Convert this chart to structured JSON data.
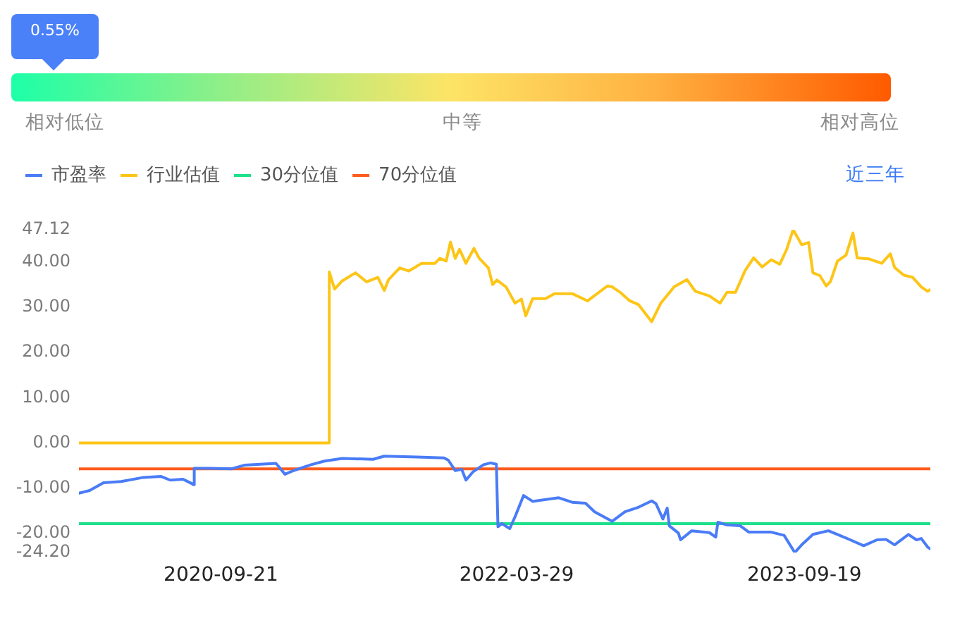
{
  "chart_data": {
    "type": "line",
    "annotations": [
      "0.55%",
      "相对低位",
      "中等",
      "相对高位",
      "近三年"
    ],
    "xlim": [
      "2019-12-30",
      "2024-05-12"
    ],
    "xticks": [
      "2020-09-21",
      "2022-03-29",
      "2023-09-19"
    ],
    "ylim": [
      -24.2,
      47.12
    ],
    "yticks": [
      {
        "value": 47.12,
        "label": "47.12"
      },
      {
        "value": 40,
        "label": "40.00"
      },
      {
        "value": 30,
        "label": "30.00"
      },
      {
        "value": 20,
        "label": "20.00"
      },
      {
        "value": 10,
        "label": "10.00"
      },
      {
        "value": 0,
        "label": "0.00"
      },
      {
        "value": -10,
        "label": "-10.00"
      },
      {
        "value": -20,
        "label": "-20.00"
      },
      {
        "value": -24.2,
        "label": "-24.20"
      }
    ],
    "legend": "top left",
    "series": [
      {
        "name": "市盈率",
        "color": "#4a7cf6",
        "x": [
          "2019-12-30",
          "2020-01-19",
          "2020-02-14",
          "2020-03-18",
          "2020-04-29",
          "2020-06-01",
          "2020-06-18",
          "2020-07-12",
          "2020-07-29",
          "2020-07-31",
          "2020-08-02",
          "2020-08-31",
          "2020-10-11",
          "2020-11-04",
          "2021-01-02",
          "2021-01-10",
          "2021-01-19",
          "2021-02-04",
          "2021-03-09",
          "2021-04-03",
          "2021-05-06",
          "2021-07-03",
          "2021-07-24",
          "2021-09-24",
          "2021-11-13",
          "2021-11-21",
          "2021-12-04",
          "2021-12-16",
          "2021-12-24",
          "2022-01-06",
          "2022-01-26",
          "2022-02-08",
          "2022-02-19",
          "2022-02-22",
          "2022-03-01",
          "2022-03-16",
          "2022-03-26",
          "2022-04-11",
          "2022-04-28",
          "2022-06-16",
          "2022-07-11",
          "2022-08-05",
          "2022-08-22",
          "2022-09-24",
          "2022-10-18",
          "2022-11-12",
          "2022-12-07",
          "2022-12-15",
          "2022-12-28",
          "2023-01-05",
          "2023-01-09",
          "2023-01-26",
          "2023-01-30",
          "2023-02-20",
          "2023-03-25",
          "2023-04-06",
          "2023-04-10",
          "2023-04-27",
          "2023-05-22",
          "2023-06-07",
          "2023-07-19",
          "2023-08-12",
          "2023-09-01",
          "2023-09-14",
          "2023-10-05",
          "2023-11-03",
          "2023-11-20",
          "2023-12-14",
          "2024-01-08",
          "2024-02-02",
          "2024-02-19",
          "2024-03-06",
          "2024-04-01",
          "2024-04-16",
          "2024-04-25",
          "2024-05-07",
          "2024-05-12"
        ],
        "values": [
          -11.1,
          -10.5,
          -8.8,
          -8.5,
          -7.6,
          -7.4,
          -8.2,
          -8.0,
          -9.0,
          -9.2,
          -5.6,
          -5.6,
          -5.7,
          -4.9,
          -4.5,
          -5.6,
          -6.9,
          -6.1,
          -4.8,
          -4.0,
          -3.4,
          -3.6,
          -2.9,
          -3.1,
          -3.3,
          -3.8,
          -6.1,
          -5.8,
          -8.2,
          -6.4,
          -4.8,
          -4.4,
          -4.7,
          -18.5,
          -17.8,
          -18.9,
          -16.3,
          -11.6,
          -12.9,
          -12.1,
          -13.1,
          -13.3,
          -15.2,
          -17.3,
          -15.2,
          -14.2,
          -12.8,
          -13.4,
          -16.8,
          -14.4,
          -18.3,
          -19.9,
          -21.4,
          -19.4,
          -19.8,
          -20.8,
          -17.5,
          -18.1,
          -18.3,
          -19.7,
          -19.7,
          -20.4,
          -24.2,
          -22.5,
          -20.2,
          -19.4,
          -20.2,
          -21.4,
          -22.7,
          -21.4,
          -21.3,
          -22.5,
          -20.2,
          -21.4,
          -21.1,
          -23.0,
          -23.4
        ]
      },
      {
        "name": "行业估值",
        "color": "#fdc516",
        "x": [
          "2019-12-30",
          "2021-04-11",
          "2021-04-12",
          "2021-04-22",
          "2021-05-06",
          "2021-05-31",
          "2021-06-21",
          "2021-07-12",
          "2021-07-24",
          "2021-08-01",
          "2021-08-22",
          "2021-09-08",
          "2021-10-02",
          "2021-10-27",
          "2021-11-05",
          "2021-11-17",
          "2021-11-25",
          "2021-12-04",
          "2021-12-12",
          "2021-12-24",
          "2022-01-08",
          "2022-01-18",
          "2022-02-04",
          "2022-02-12",
          "2022-02-20",
          "2022-03-09",
          "2022-03-26",
          "2022-04-07",
          "2022-04-15",
          "2022-04-28",
          "2022-05-22",
          "2022-06-08",
          "2022-07-11",
          "2022-08-09",
          "2022-09-15",
          "2022-09-24",
          "2022-10-10",
          "2022-10-27",
          "2022-11-12",
          "2022-12-07",
          "2022-12-24",
          "2023-01-18",
          "2023-02-11",
          "2023-02-27",
          "2023-03-25",
          "2023-04-14",
          "2023-04-27",
          "2023-05-13",
          "2023-05-31",
          "2023-06-16",
          "2023-07-02",
          "2023-07-19",
          "2023-08-04",
          "2023-08-17",
          "2023-08-29",
          "2023-09-14",
          "2023-09-27",
          "2023-10-05",
          "2023-10-18",
          "2023-10-30",
          "2023-11-07",
          "2023-11-20",
          "2023-12-06",
          "2023-12-19",
          "2023-12-27",
          "2024-01-17",
          "2024-02-11",
          "2024-02-27",
          "2024-03-06",
          "2024-03-23",
          "2024-04-09",
          "2024-04-25",
          "2024-05-07",
          "2024-05-12"
        ],
        "values": [
          0,
          0,
          37.8,
          34.0,
          35.8,
          37.6,
          35.6,
          36.6,
          33.7,
          36.1,
          38.7,
          38.0,
          39.7,
          39.7,
          40.8,
          40.2,
          44.4,
          40.8,
          42.8,
          39.7,
          43.0,
          40.8,
          38.7,
          35.0,
          36.0,
          34.5,
          30.9,
          31.8,
          28.1,
          31.9,
          31.9,
          33.0,
          33.0,
          31.4,
          34.7,
          34.5,
          33.2,
          31.4,
          30.6,
          26.8,
          30.9,
          34.5,
          36.1,
          33.5,
          32.5,
          30.9,
          33.3,
          33.3,
          38.1,
          40.9,
          38.9,
          40.5,
          39.5,
          42.8,
          47.12,
          43.8,
          44.3,
          37.6,
          37.0,
          34.7,
          35.7,
          40.2,
          41.5,
          46.4,
          40.9,
          40.7,
          39.7,
          41.8,
          38.8,
          37.1,
          36.6,
          34.5,
          33.5,
          33.9
        ]
      },
      {
        "name": "30分位值",
        "color": "#1ee08a",
        "x": [
          "2019-12-30",
          "2024-05-12"
        ],
        "values": [
          -17.8,
          -17.8
        ]
      },
      {
        "name": "70分位值",
        "color": "#fd5c1e",
        "x": [
          "2019-12-30",
          "2024-05-12"
        ],
        "values": [
          -5.7,
          -5.7
        ]
      }
    ]
  }
}
